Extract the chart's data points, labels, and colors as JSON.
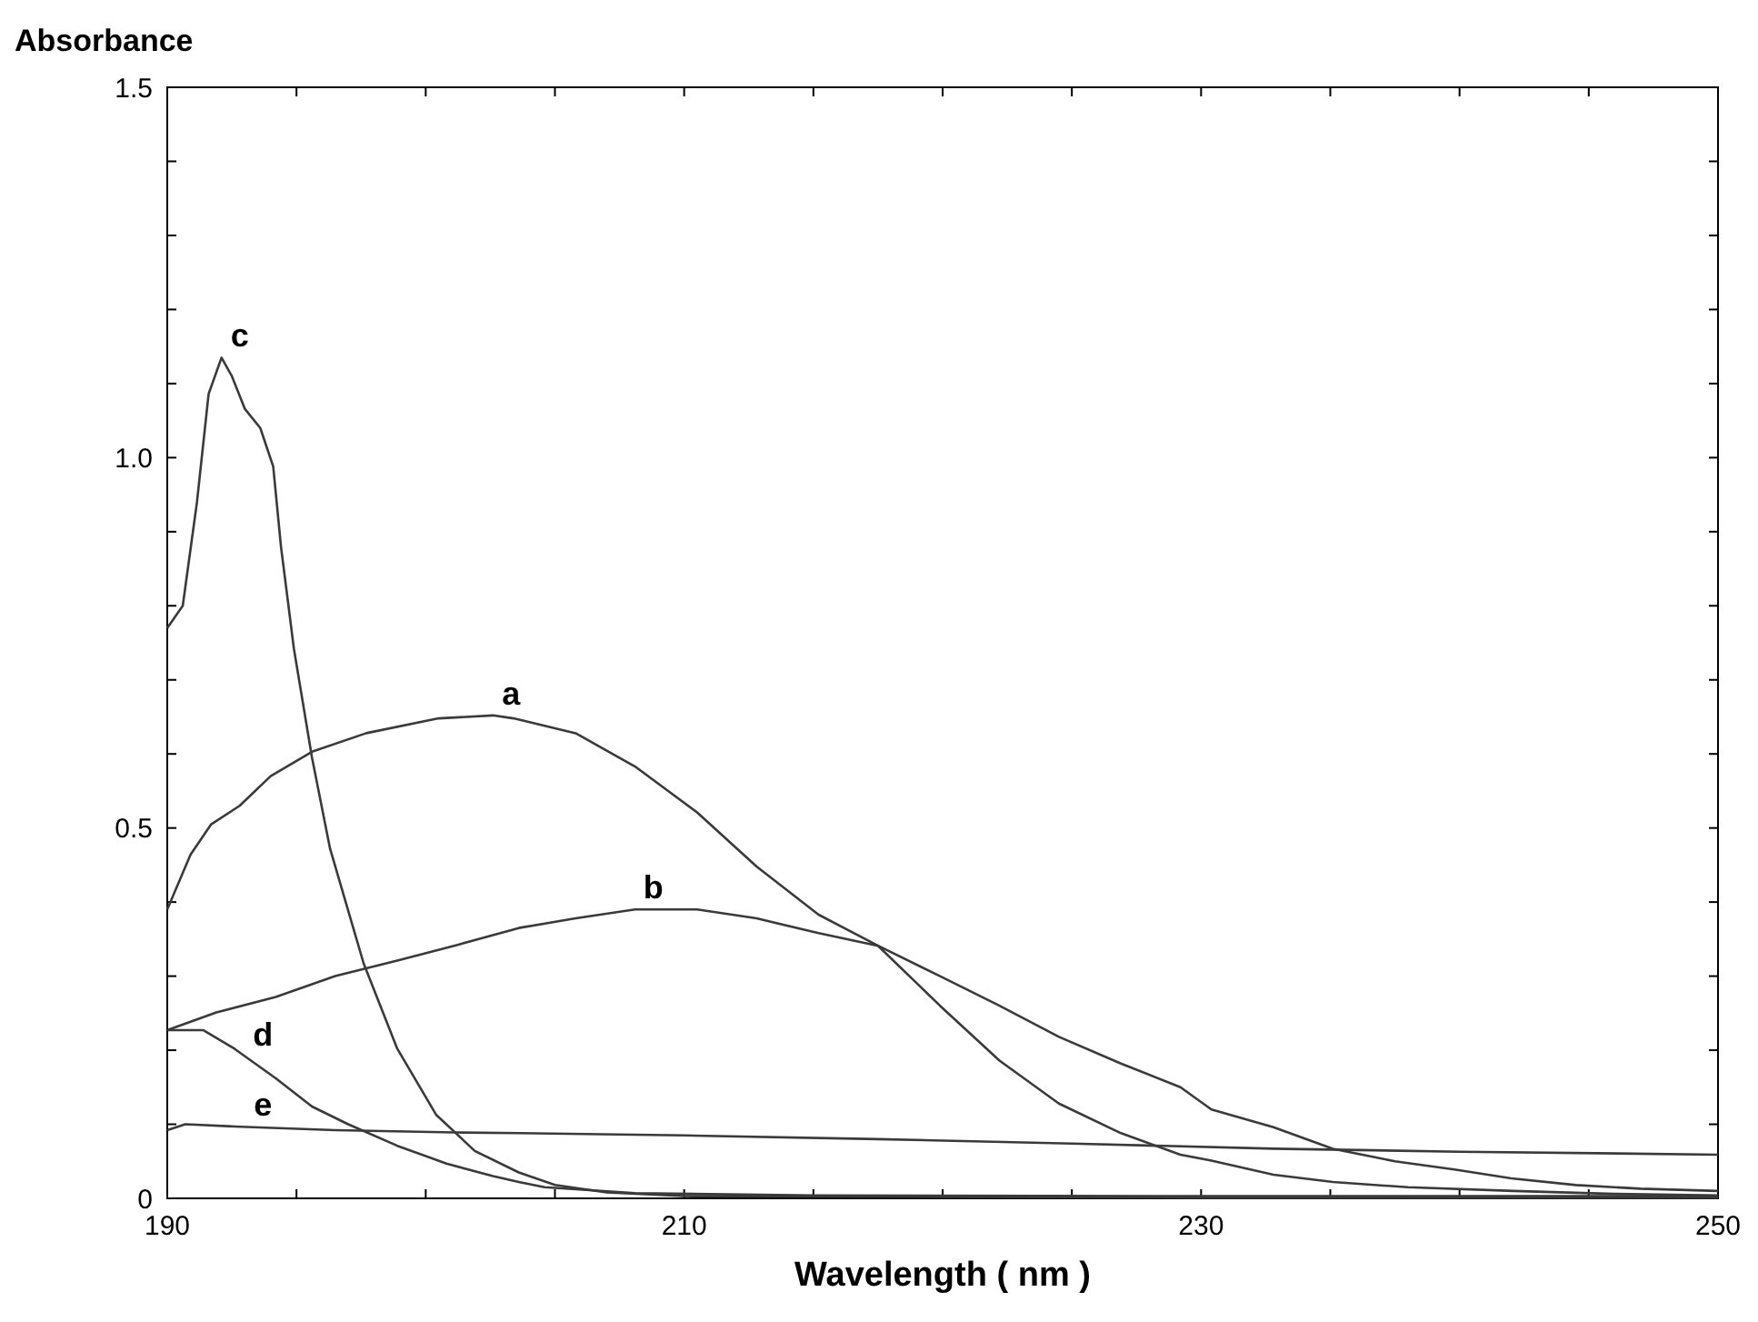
{
  "chart_data": {
    "type": "line",
    "xlabel": "Wavelength ( nm )",
    "ylabel": "Absorbance",
    "xlim": [
      190,
      250
    ],
    "ylim": [
      0,
      1.5
    ],
    "xticks": [
      190,
      {
        "value": 195,
        "label": null
      },
      {
        "value": 200,
        "label": null
      },
      {
        "value": 205,
        "label": null
      },
      210,
      {
        "value": 215,
        "label": null
      },
      {
        "value": 220,
        "label": null
      },
      {
        "value": 225,
        "label": null
      },
      230,
      {
        "value": 235,
        "label": null
      },
      {
        "value": 240,
        "label": null
      },
      {
        "value": 245,
        "label": null
      },
      250
    ],
    "yticks": [
      0,
      {
        "value": 0.1,
        "label": null
      },
      {
        "value": 0.2,
        "label": null
      },
      {
        "value": 0.3,
        "label": null
      },
      {
        "value": 0.4,
        "label": null
      },
      {
        "value": 0.5,
        "label": "0.5"
      },
      {
        "value": 0.6,
        "label": null
      },
      {
        "value": 0.7,
        "label": null
      },
      {
        "value": 0.8,
        "label": null
      },
      {
        "value": 0.9,
        "label": null
      },
      {
        "value": 1,
        "label": "1.0"
      },
      {
        "value": 1.1,
        "label": null
      },
      {
        "value": 1.2,
        "label": null
      },
      {
        "value": 1.3,
        "label": null
      },
      {
        "value": 1.4,
        "label": null
      },
      {
        "value": 1.5,
        "label": "1.5"
      }
    ],
    "grid": false,
    "legend": false,
    "marker": "none",
    "line_style": "solid",
    "series": [
      {
        "name": "a",
        "color": "#3a3a3a",
        "x": [
          190,
          190.9,
          191.7,
          192.8,
          194,
          195.6,
          197.7,
          200.5,
          202.6,
          203.4,
          205.8,
          208.1,
          210.5,
          212.8,
          215.2,
          217.5,
          219.9,
          222.2,
          224.5,
          226.9,
          229.2,
          230.4,
          232.8,
          235.1,
          238,
          242.1,
          246,
          250
        ],
        "values": [
          0.39,
          0.464,
          0.505,
          0.53,
          0.57,
          0.603,
          0.628,
          0.648,
          0.652,
          0.648,
          0.628,
          0.583,
          0.521,
          0.448,
          0.383,
          0.341,
          0.26,
          0.186,
          0.128,
          0.088,
          0.059,
          0.051,
          0.032,
          0.022,
          0.015,
          0.01,
          0.006,
          0.004
        ]
      },
      {
        "name": "b",
        "color": "#3a3a3a",
        "x": [
          190,
          191.9,
          194.2,
          196.5,
          198.9,
          201.2,
          203.6,
          205.8,
          208.1,
          210.5,
          212.8,
          215.2,
          217.5,
          219.9,
          222.2,
          224.5,
          226.9,
          229.2,
          230.4,
          232.8,
          235.1,
          237.5,
          239.8,
          242,
          244.5,
          247,
          250
        ],
        "values": [
          0.227,
          0.251,
          0.272,
          0.3,
          0.321,
          0.342,
          0.365,
          0.378,
          0.39,
          0.39,
          0.378,
          0.358,
          0.341,
          0.3,
          0.26,
          0.218,
          0.182,
          0.15,
          0.12,
          0.096,
          0.067,
          0.05,
          0.039,
          0.027,
          0.018,
          0.013,
          0.01
        ]
      },
      {
        "name": "c",
        "color": "#3a3a3a",
        "x": [
          190,
          190.6,
          191.15,
          191.6,
          192.1,
          192.5,
          193,
          193.6,
          194.1,
          194.4,
          194.9,
          195.6,
          196.3,
          197.6,
          198.9,
          200.4,
          201.9,
          203.6,
          205,
          207,
          210,
          220,
          230,
          250
        ],
        "values": [
          0.77,
          0.8,
          0.94,
          1.086,
          1.135,
          1.11,
          1.066,
          1.04,
          0.988,
          0.88,
          0.742,
          0.595,
          0.472,
          0.317,
          0.202,
          0.113,
          0.064,
          0.035,
          0.018,
          0.008,
          0.003,
          0.002,
          0.001,
          0.001
        ]
      },
      {
        "name": "d",
        "color": "#3a3a3a",
        "x": [
          190,
          191.4,
          192.6,
          194.2,
          195.6,
          197,
          198.9,
          200.8,
          202.6,
          203.6,
          204.6,
          208.1,
          215,
          230,
          250
        ],
        "values": [
          0.227,
          0.227,
          0.202,
          0.162,
          0.124,
          0.1,
          0.071,
          0.047,
          0.03,
          0.022,
          0.015,
          0.007,
          0.004,
          0.003,
          0.003
        ]
      },
      {
        "name": "e",
        "color": "#3a3a3a",
        "x": [
          190,
          190.7,
          192.6,
          196.5,
          201.1,
          203.6,
          210,
          217.5,
          225,
          232.8,
          240,
          250
        ],
        "values": [
          0.092,
          0.1,
          0.097,
          0.092,
          0.089,
          0.088,
          0.085,
          0.08,
          0.074,
          0.067,
          0.063,
          0.059
        ]
      }
    ]
  }
}
